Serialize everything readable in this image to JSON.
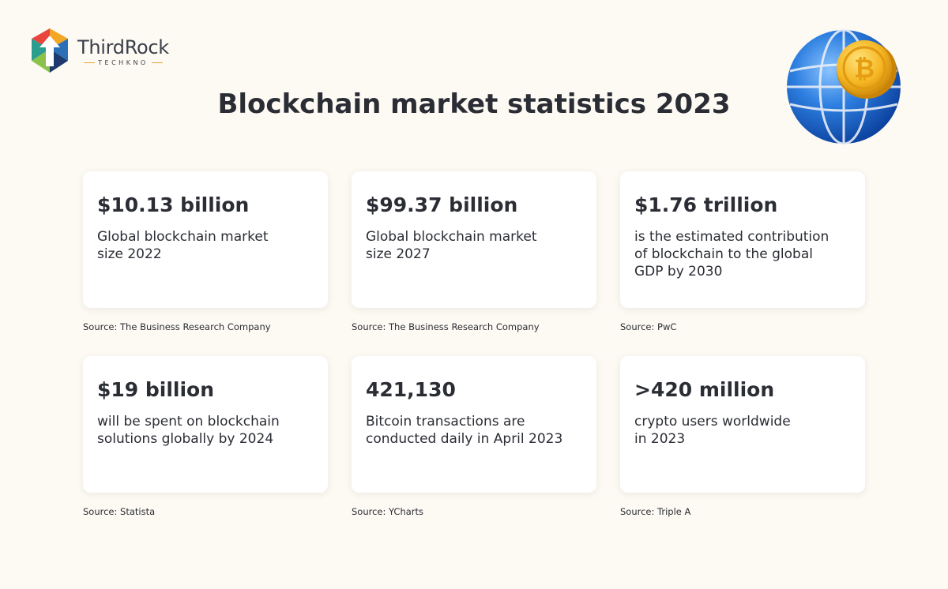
{
  "brand": {
    "name": "ThirdRock",
    "sub": "TECHKNO"
  },
  "title": "Blockchain market statistics 2023",
  "stats": [
    {
      "value": "$10.13 billion",
      "desc": "Global blockchain market\nsize 2022",
      "source": "Source: The Business Research Company"
    },
    {
      "value": "$99.37 billion",
      "desc": "Global blockchain market\nsize 2027",
      "source": "Source: The Business Research Company"
    },
    {
      "value": "$1.76 trillion",
      "desc": "is the estimated contribution\nof blockchain to the global\nGDP by 2030",
      "source": "Source: PwC"
    },
    {
      "value": "$19 billion",
      "desc": "will be spent on blockchain\nsolutions globally by 2024",
      "source": "Source: Statista"
    },
    {
      "value": "421,130",
      "desc": "Bitcoin transactions are\nconducted daily in April 2023",
      "source": "Source: YCharts"
    },
    {
      "value": ">420 million",
      "desc": "crypto users worldwide\nin 2023",
      "source": "Source: Triple A"
    }
  ],
  "colors": {
    "background": "#fdfaf3",
    "text": "#2b2d35",
    "card": "#ffffff",
    "globe": "#2d7fe0",
    "coin": "#f5b623"
  },
  "icons": {
    "logo": "thirdrock-logo-icon",
    "globe": "globe-bitcoin-icon"
  }
}
